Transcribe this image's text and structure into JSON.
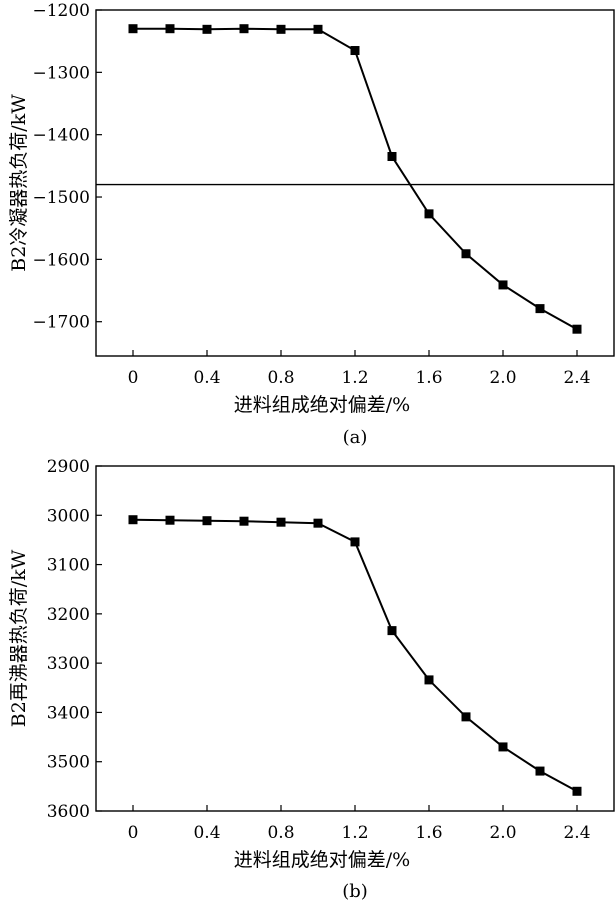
{
  "chart_data": [
    {
      "type": "line",
      "caption": "(a)",
      "xlabel": "进料组成绝对偏差/%",
      "ylabel": "B2冷凝器热负荷/kW",
      "xlim": [
        -0.2,
        2.6
      ],
      "ylim": [
        -1755,
        -1200
      ],
      "y_inverted": false,
      "x_ticks": [
        0,
        0.4,
        0.8,
        1.2,
        1.6,
        2.0,
        2.4
      ],
      "x_tick_labels": [
        "0",
        "0.4",
        "0.8",
        "1.2",
        "1.6",
        "2.0",
        "2.4"
      ],
      "y_ticks": [
        -1200,
        -1300,
        -1400,
        -1500,
        -1600,
        -1700
      ],
      "y_tick_labels": [
        "−1200",
        "−1300",
        "−1400",
        "−1500",
        "−1600",
        "−1700"
      ],
      "hline": -1480,
      "grid": false,
      "marker": "square",
      "series": [
        {
          "x": [
            0,
            0.2,
            0.4,
            0.6,
            0.8,
            1.0,
            1.2,
            1.4,
            1.6,
            1.8,
            2.0,
            2.2,
            2.4
          ],
          "values": [
            -1230,
            -1230,
            -1231,
            -1230,
            -1231,
            -1231,
            -1265,
            -1435,
            -1527,
            -1591,
            -1641,
            -1679,
            -1712
          ]
        }
      ]
    },
    {
      "type": "line",
      "caption": "(b)",
      "xlabel": "进料组成绝对偏差/%",
      "ylabel": "B2再沸器热负荷/kW",
      "xlim": [
        -0.2,
        2.6
      ],
      "ylim": [
        2900,
        3600
      ],
      "y_inverted": true,
      "x_ticks": [
        0,
        0.4,
        0.8,
        1.2,
        1.6,
        2.0,
        2.4
      ],
      "x_tick_labels": [
        "0",
        "0.4",
        "0.8",
        "1.2",
        "1.6",
        "2.0",
        "2.4"
      ],
      "y_ticks": [
        2900,
        3000,
        3100,
        3200,
        3300,
        3400,
        3500,
        3600
      ],
      "y_tick_labels": [
        "2900",
        "3000",
        "3100",
        "3200",
        "3300",
        "3400",
        "3500",
        "3600"
      ],
      "grid": false,
      "marker": "square",
      "series": [
        {
          "x": [
            0,
            0.2,
            0.4,
            0.6,
            0.8,
            1.0,
            1.2,
            1.4,
            1.6,
            1.8,
            2.0,
            2.2,
            2.4
          ],
          "values": [
            3009,
            3010,
            3011,
            3012,
            3014,
            3016,
            3054,
            3234,
            3334,
            3409,
            3470,
            3519,
            3560
          ]
        }
      ]
    }
  ]
}
